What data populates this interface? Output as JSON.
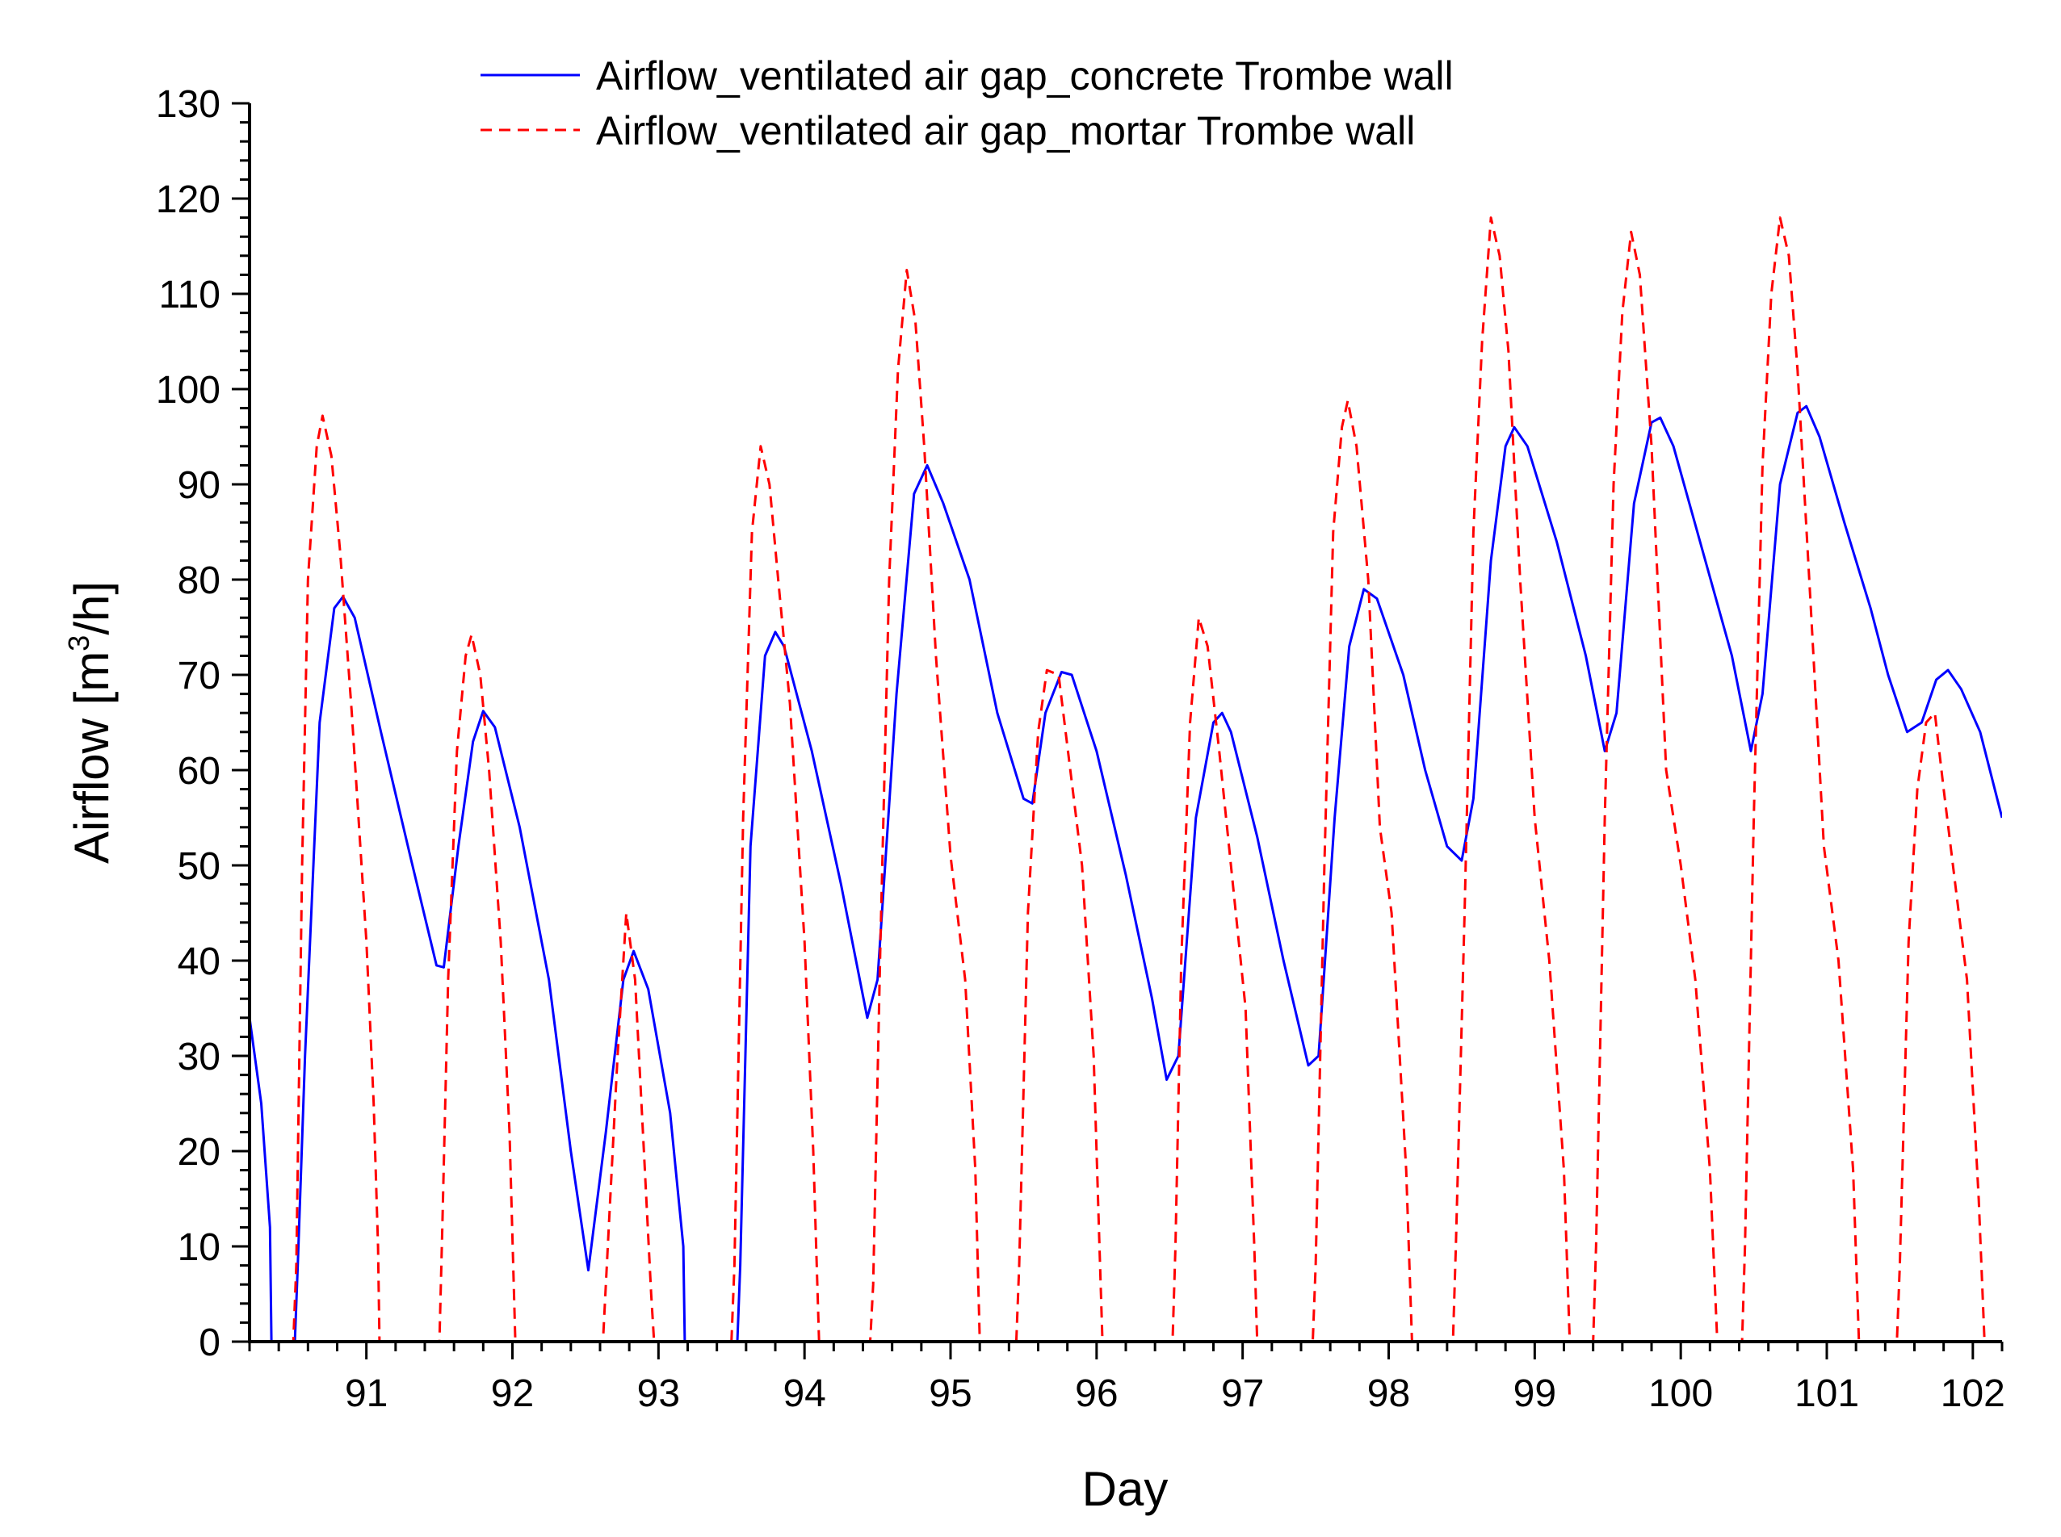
{
  "chart_data": {
    "type": "line",
    "title": "",
    "xlabel": "Day",
    "ylabel_main": "Airflow [m",
    "ylabel_sup": "3",
    "ylabel_tail": "/h]",
    "xlim": [
      90.2,
      102.2
    ],
    "ylim": [
      0,
      130
    ],
    "xticks": [
      91,
      92,
      93,
      94,
      95,
      96,
      97,
      98,
      99,
      100,
      101,
      102
    ],
    "yticks": [
      0,
      10,
      20,
      30,
      40,
      50,
      60,
      70,
      80,
      90,
      100,
      110,
      120,
      130
    ],
    "legend_position": "top-center",
    "series": [
      {
        "name": "Airflow_ventilated air gap_concrete Trombe wall",
        "color": "#0000ff",
        "style": "solid",
        "points": [
          [
            90.2,
            34
          ],
          [
            90.28,
            25
          ],
          [
            90.34,
            12
          ],
          [
            90.35,
            0
          ],
          [
            90.51,
            0
          ],
          [
            90.53,
            8
          ],
          [
            90.58,
            30
          ],
          [
            90.68,
            65
          ],
          [
            90.78,
            77
          ],
          [
            90.84,
            78.2
          ],
          [
            90.92,
            76
          ],
          [
            91.1,
            64
          ],
          [
            91.3,
            51
          ],
          [
            91.48,
            39.5
          ],
          [
            91.53,
            39.3
          ],
          [
            91.63,
            52
          ],
          [
            91.73,
            63
          ],
          [
            91.8,
            66.2
          ],
          [
            91.88,
            64.5
          ],
          [
            92.05,
            54
          ],
          [
            92.25,
            38
          ],
          [
            92.4,
            20
          ],
          [
            92.52,
            7.5
          ],
          [
            92.64,
            22
          ],
          [
            92.76,
            38
          ],
          [
            92.83,
            41
          ],
          [
            92.93,
            37
          ],
          [
            93.08,
            24
          ],
          [
            93.17,
            10
          ],
          [
            93.18,
            0
          ],
          [
            93.54,
            0
          ],
          [
            93.56,
            8
          ],
          [
            93.63,
            52
          ],
          [
            93.73,
            72
          ],
          [
            93.8,
            74.5
          ],
          [
            93.86,
            73
          ],
          [
            94.05,
            62
          ],
          [
            94.25,
            48
          ],
          [
            94.43,
            34
          ],
          [
            94.5,
            38
          ],
          [
            94.63,
            68
          ],
          [
            94.75,
            89
          ],
          [
            94.84,
            92
          ],
          [
            94.95,
            88
          ],
          [
            95.13,
            80
          ],
          [
            95.32,
            66
          ],
          [
            95.5,
            57
          ],
          [
            95.56,
            56.5
          ],
          [
            95.65,
            66
          ],
          [
            95.76,
            70.3
          ],
          [
            95.83,
            70
          ],
          [
            96.0,
            62
          ],
          [
            96.2,
            49
          ],
          [
            96.38,
            36
          ],
          [
            96.48,
            27.5
          ],
          [
            96.56,
            30
          ],
          [
            96.68,
            55
          ],
          [
            96.8,
            65
          ],
          [
            96.86,
            66
          ],
          [
            96.92,
            64
          ],
          [
            97.1,
            53
          ],
          [
            97.28,
            40
          ],
          [
            97.45,
            29
          ],
          [
            97.52,
            30
          ],
          [
            97.63,
            55
          ],
          [
            97.73,
            73
          ],
          [
            97.83,
            79
          ],
          [
            97.92,
            78
          ],
          [
            98.1,
            70
          ],
          [
            98.25,
            60
          ],
          [
            98.4,
            52
          ],
          [
            98.5,
            50.5
          ],
          [
            98.58,
            57
          ],
          [
            98.7,
            82
          ],
          [
            98.8,
            94
          ],
          [
            98.86,
            96
          ],
          [
            98.95,
            94
          ],
          [
            99.15,
            84
          ],
          [
            99.35,
            72
          ],
          [
            99.48,
            62
          ],
          [
            99.56,
            66
          ],
          [
            99.68,
            88
          ],
          [
            99.8,
            96.5
          ],
          [
            99.86,
            97
          ],
          [
            99.95,
            94
          ],
          [
            100.15,
            83
          ],
          [
            100.35,
            72
          ],
          [
            100.48,
            62
          ],
          [
            100.56,
            68
          ],
          [
            100.68,
            90
          ],
          [
            100.8,
            97.5
          ],
          [
            100.86,
            98.2
          ],
          [
            100.95,
            95
          ],
          [
            101.12,
            86
          ],
          [
            101.3,
            77
          ],
          [
            101.42,
            70
          ],
          [
            101.55,
            64
          ],
          [
            101.65,
            65
          ],
          [
            101.75,
            69.5
          ],
          [
            101.83,
            70.5
          ],
          [
            101.92,
            68.5
          ],
          [
            102.05,
            64
          ],
          [
            102.2,
            55
          ]
        ]
      },
      {
        "name": "Airflow_ventilated air gap_mortar Trombe wall",
        "color": "#ff0000",
        "style": "dashed",
        "points": [
          [
            90.2,
            0
          ],
          [
            90.5,
            0
          ],
          [
            90.52,
            8
          ],
          [
            90.56,
            50
          ],
          [
            90.6,
            80
          ],
          [
            90.66,
            94
          ],
          [
            90.7,
            97.2
          ],
          [
            90.76,
            93
          ],
          [
            90.82,
            83
          ],
          [
            90.9,
            66
          ],
          [
            91.0,
            42
          ],
          [
            91.05,
            25
          ],
          [
            91.08,
            10
          ],
          [
            91.09,
            0
          ],
          [
            91.5,
            0
          ],
          [
            91.52,
            12
          ],
          [
            91.56,
            38
          ],
          [
            91.62,
            62
          ],
          [
            91.68,
            72
          ],
          [
            91.72,
            74.2
          ],
          [
            91.78,
            70
          ],
          [
            91.84,
            60
          ],
          [
            91.92,
            42
          ],
          [
            91.98,
            22
          ],
          [
            92.02,
            0
          ],
          [
            92.62,
            0
          ],
          [
            92.66,
            12
          ],
          [
            92.72,
            30
          ],
          [
            92.78,
            45
          ],
          [
            92.84,
            38
          ],
          [
            92.9,
            20
          ],
          [
            92.95,
            5
          ],
          [
            92.97,
            0
          ],
          [
            93.5,
            0
          ],
          [
            93.52,
            8
          ],
          [
            93.58,
            55
          ],
          [
            93.64,
            85
          ],
          [
            93.7,
            94
          ],
          [
            93.76,
            90
          ],
          [
            93.82,
            80
          ],
          [
            93.9,
            67
          ],
          [
            94.0,
            42
          ],
          [
            94.06,
            20
          ],
          [
            94.1,
            0
          ],
          [
            94.45,
            0
          ],
          [
            94.47,
            6
          ],
          [
            94.52,
            42
          ],
          [
            94.58,
            80
          ],
          [
            94.64,
            102
          ],
          [
            94.7,
            112.5
          ],
          [
            94.76,
            107
          ],
          [
            94.82,
            94
          ],
          [
            94.9,
            72
          ],
          [
            95.0,
            51
          ],
          [
            95.1,
            38
          ],
          [
            95.17,
            18
          ],
          [
            95.2,
            0
          ],
          [
            95.45,
            0
          ],
          [
            95.47,
            8
          ],
          [
            95.53,
            45
          ],
          [
            95.6,
            64
          ],
          [
            95.66,
            70.5
          ],
          [
            95.74,
            70
          ],
          [
            95.82,
            60
          ],
          [
            95.9,
            50
          ],
          [
            95.98,
            30
          ],
          [
            96.02,
            10
          ],
          [
            96.04,
            0
          ],
          [
            96.52,
            0
          ],
          [
            96.54,
            10
          ],
          [
            96.58,
            40
          ],
          [
            96.64,
            65
          ],
          [
            96.7,
            76
          ],
          [
            96.76,
            73
          ],
          [
            96.84,
            62
          ],
          [
            96.92,
            50
          ],
          [
            97.02,
            35
          ],
          [
            97.08,
            10
          ],
          [
            97.1,
            0
          ],
          [
            97.48,
            0
          ],
          [
            97.5,
            8
          ],
          [
            97.56,
            50
          ],
          [
            97.62,
            85
          ],
          [
            97.68,
            96
          ],
          [
            97.72,
            98.8
          ],
          [
            97.78,
            94
          ],
          [
            97.86,
            80
          ],
          [
            97.94,
            54
          ],
          [
            98.02,
            45
          ],
          [
            98.12,
            18
          ],
          [
            98.16,
            0
          ],
          [
            98.44,
            0
          ],
          [
            98.46,
            10
          ],
          [
            98.52,
            45
          ],
          [
            98.58,
            85
          ],
          [
            98.64,
            105
          ],
          [
            98.7,
            118
          ],
          [
            98.76,
            114
          ],
          [
            98.82,
            104
          ],
          [
            98.9,
            80
          ],
          [
            99.0,
            55
          ],
          [
            99.1,
            40
          ],
          [
            99.2,
            18
          ],
          [
            99.24,
            0
          ],
          [
            99.4,
            0
          ],
          [
            99.42,
            10
          ],
          [
            99.48,
            55
          ],
          [
            99.54,
            90
          ],
          [
            99.6,
            108
          ],
          [
            99.66,
            116.5
          ],
          [
            99.72,
            112
          ],
          [
            99.8,
            94
          ],
          [
            99.9,
            60
          ],
          [
            100.0,
            50
          ],
          [
            100.1,
            38
          ],
          [
            100.2,
            18
          ],
          [
            100.25,
            0
          ],
          [
            100.42,
            0
          ],
          [
            100.44,
            10
          ],
          [
            100.5,
            55
          ],
          [
            100.56,
            92
          ],
          [
            100.62,
            110
          ],
          [
            100.68,
            118
          ],
          [
            100.74,
            114
          ],
          [
            100.8,
            102
          ],
          [
            100.88,
            80
          ],
          [
            100.98,
            52
          ],
          [
            101.08,
            40
          ],
          [
            101.18,
            18
          ],
          [
            101.22,
            0
          ],
          [
            101.48,
            0
          ],
          [
            101.5,
            8
          ],
          [
            101.56,
            42
          ],
          [
            101.62,
            58
          ],
          [
            101.68,
            65
          ],
          [
            101.74,
            66
          ],
          [
            101.8,
            58
          ],
          [
            101.88,
            48
          ],
          [
            101.96,
            38
          ],
          [
            102.04,
            15
          ],
          [
            102.08,
            0
          ],
          [
            102.2,
            0
          ]
        ]
      }
    ]
  }
}
